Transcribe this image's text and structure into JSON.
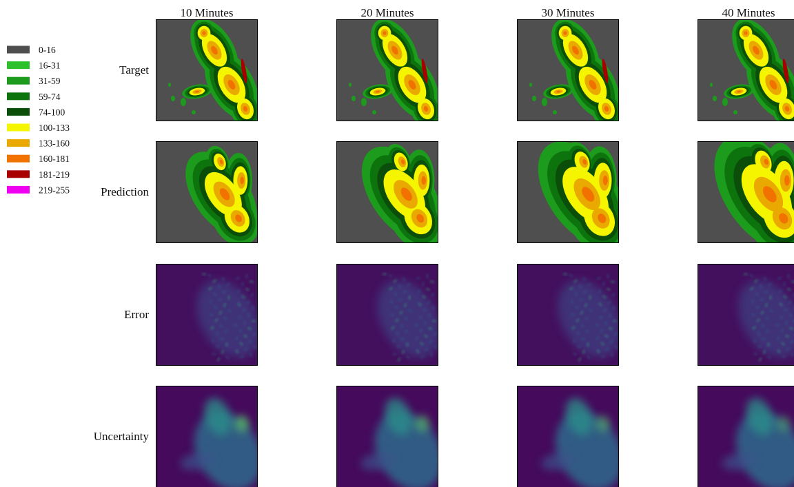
{
  "legend": {
    "items": [
      {
        "label": "0-16",
        "color": "#4f4f4f"
      },
      {
        "label": "16-31",
        "color": "#2cc12c"
      },
      {
        "label": "31-59",
        "color": "#1d9b1d"
      },
      {
        "label": "59-74",
        "color": "#0d740d"
      },
      {
        "label": "74-100",
        "color": "#0a4e0a"
      },
      {
        "label": "100-133",
        "color": "#f5f500"
      },
      {
        "label": "133-160",
        "color": "#e9a900"
      },
      {
        "label": "160-181",
        "color": "#f27200"
      },
      {
        "label": "181-219",
        "color": "#a80000"
      },
      {
        "label": "219-255",
        "color": "#f000f0"
      }
    ]
  },
  "columns": [
    "10 Minutes",
    "20 Minutes",
    "30 Minutes",
    "40 Minutes"
  ],
  "rows": [
    "Target",
    "Prediction",
    "Error",
    "Uncertainty"
  ]
}
